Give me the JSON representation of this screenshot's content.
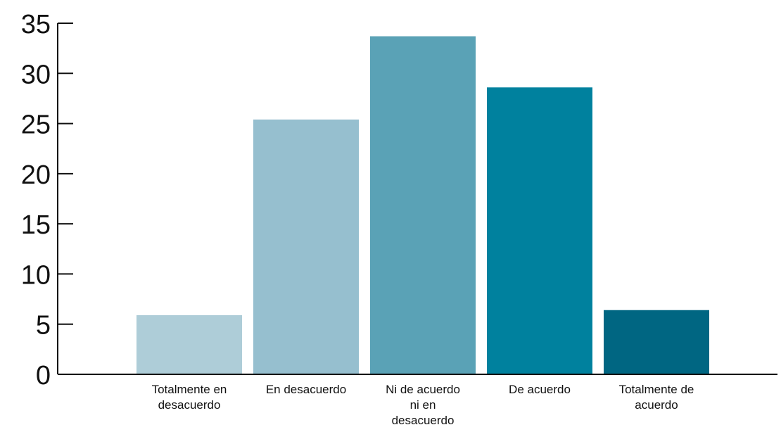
{
  "chart_data": {
    "type": "bar",
    "title": "",
    "xlabel": "",
    "ylabel": "",
    "categories": [
      "Totalmente en desacuerdo",
      "En desacuerdo",
      "Ni de acuerdo ni en desacuerdo",
      "De acuerdo",
      "Totalmente de acuerdo"
    ],
    "category_label_lines": [
      [
        "Totalmente en",
        "desacuerdo"
      ],
      [
        "En desacuerdo"
      ],
      [
        "Ni de acuerdo",
        "ni en",
        "desacuerdo"
      ],
      [
        "De acuerdo"
      ],
      [
        "Totalmente de",
        "acuerdo"
      ]
    ],
    "values": [
      5.9,
      25.4,
      33.7,
      28.6,
      6.4
    ],
    "bar_colors": [
      "#aecdd8",
      "#96bfcf",
      "#5aa2b6",
      "#00819e",
      "#006682"
    ],
    "ylim": [
      0,
      35
    ],
    "yticks": [
      0,
      5,
      10,
      15,
      20,
      25,
      30,
      35
    ],
    "ytick_labels": [
      "0",
      "5",
      "10",
      "15",
      "20",
      "25",
      "30",
      "35"
    ],
    "grid": false,
    "legend": "none"
  }
}
